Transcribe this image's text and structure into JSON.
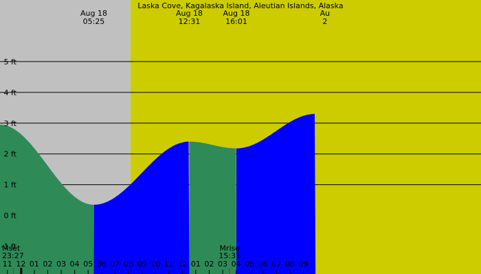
{
  "chart_data": {
    "type": "area",
    "title": "Laska Cove, Kagalaska Island, Aleutian Islands, Alaska",
    "ylabel": "",
    "xlabel": "",
    "y_unit": "ft",
    "ylim": [
      -1.9,
      7.0
    ],
    "y_ticks": [
      {
        "value": 5,
        "label": "5 ft"
      },
      {
        "value": 4,
        "label": "4 ft"
      },
      {
        "value": 3,
        "label": "3 ft"
      },
      {
        "value": 2,
        "label": "2 ft"
      },
      {
        "value": 1,
        "label": "1 ft"
      },
      {
        "value": 0,
        "label": "0 ft"
      },
      {
        "value": -1,
        "label": "-1 ft"
      }
    ],
    "x_range_hours": [
      -1.55,
      34.2
    ],
    "hour_ticks": [
      {
        "h": -1,
        "label": "11"
      },
      {
        "h": 0,
        "label": "12"
      },
      {
        "h": 1,
        "label": "01"
      },
      {
        "h": 2,
        "label": "02"
      },
      {
        "h": 3,
        "label": "03"
      },
      {
        "h": 4,
        "label": "04"
      },
      {
        "h": 5,
        "label": "05"
      },
      {
        "h": 6,
        "label": "06"
      },
      {
        "h": 7,
        "label": "07"
      },
      {
        "h": 8,
        "label": "08"
      },
      {
        "h": 9,
        "label": "09"
      },
      {
        "h": 10,
        "label": "10"
      },
      {
        "h": 11,
        "label": "11"
      },
      {
        "h": 12,
        "label": "12"
      },
      {
        "h": 13,
        "label": "01"
      },
      {
        "h": 14,
        "label": "02"
      },
      {
        "h": 15,
        "label": "03"
      },
      {
        "h": 16,
        "label": "04"
      },
      {
        "h": 17,
        "label": "05"
      },
      {
        "h": 18,
        "label": "06"
      },
      {
        "h": 19,
        "label": "07"
      },
      {
        "h": 20,
        "label": "08"
      },
      {
        "h": 21,
        "label": "09"
      }
    ],
    "tide_curve": [
      {
        "h": -1.55,
        "ft": 2.95
      },
      {
        "h": 5.42,
        "ft": 0.35
      },
      {
        "h": 12.52,
        "ft": 2.4
      },
      {
        "h": 16.02,
        "ft": 2.18
      },
      {
        "h": 21.9,
        "ft": 3.3
      }
    ],
    "tide_events": [
      {
        "date": "Aug 18",
        "time": "05:25",
        "h": 5.42
      },
      {
        "date": "Aug 18",
        "time": "12:31",
        "h": 12.52
      },
      {
        "date": "Aug 18",
        "time": "16:01",
        "h": 16.02
      },
      {
        "date": "Au",
        "time": "2",
        "h": 22.6
      }
    ],
    "moon_events": [
      {
        "label": "Mset",
        "time": "23:27",
        "h": -0.55
      },
      {
        "label": "Mrise",
        "time": "15:31",
        "h": 15.52
      }
    ],
    "sunrise_h": 8.15,
    "colors": {
      "night": "#c0c0c0",
      "day": "#cccc00",
      "falling_tide": "#2e8b57",
      "rising_tide": "#0000ff",
      "gridline": "#000000",
      "moon_marker": "#ff0000",
      "now_marker": "#000000"
    }
  }
}
